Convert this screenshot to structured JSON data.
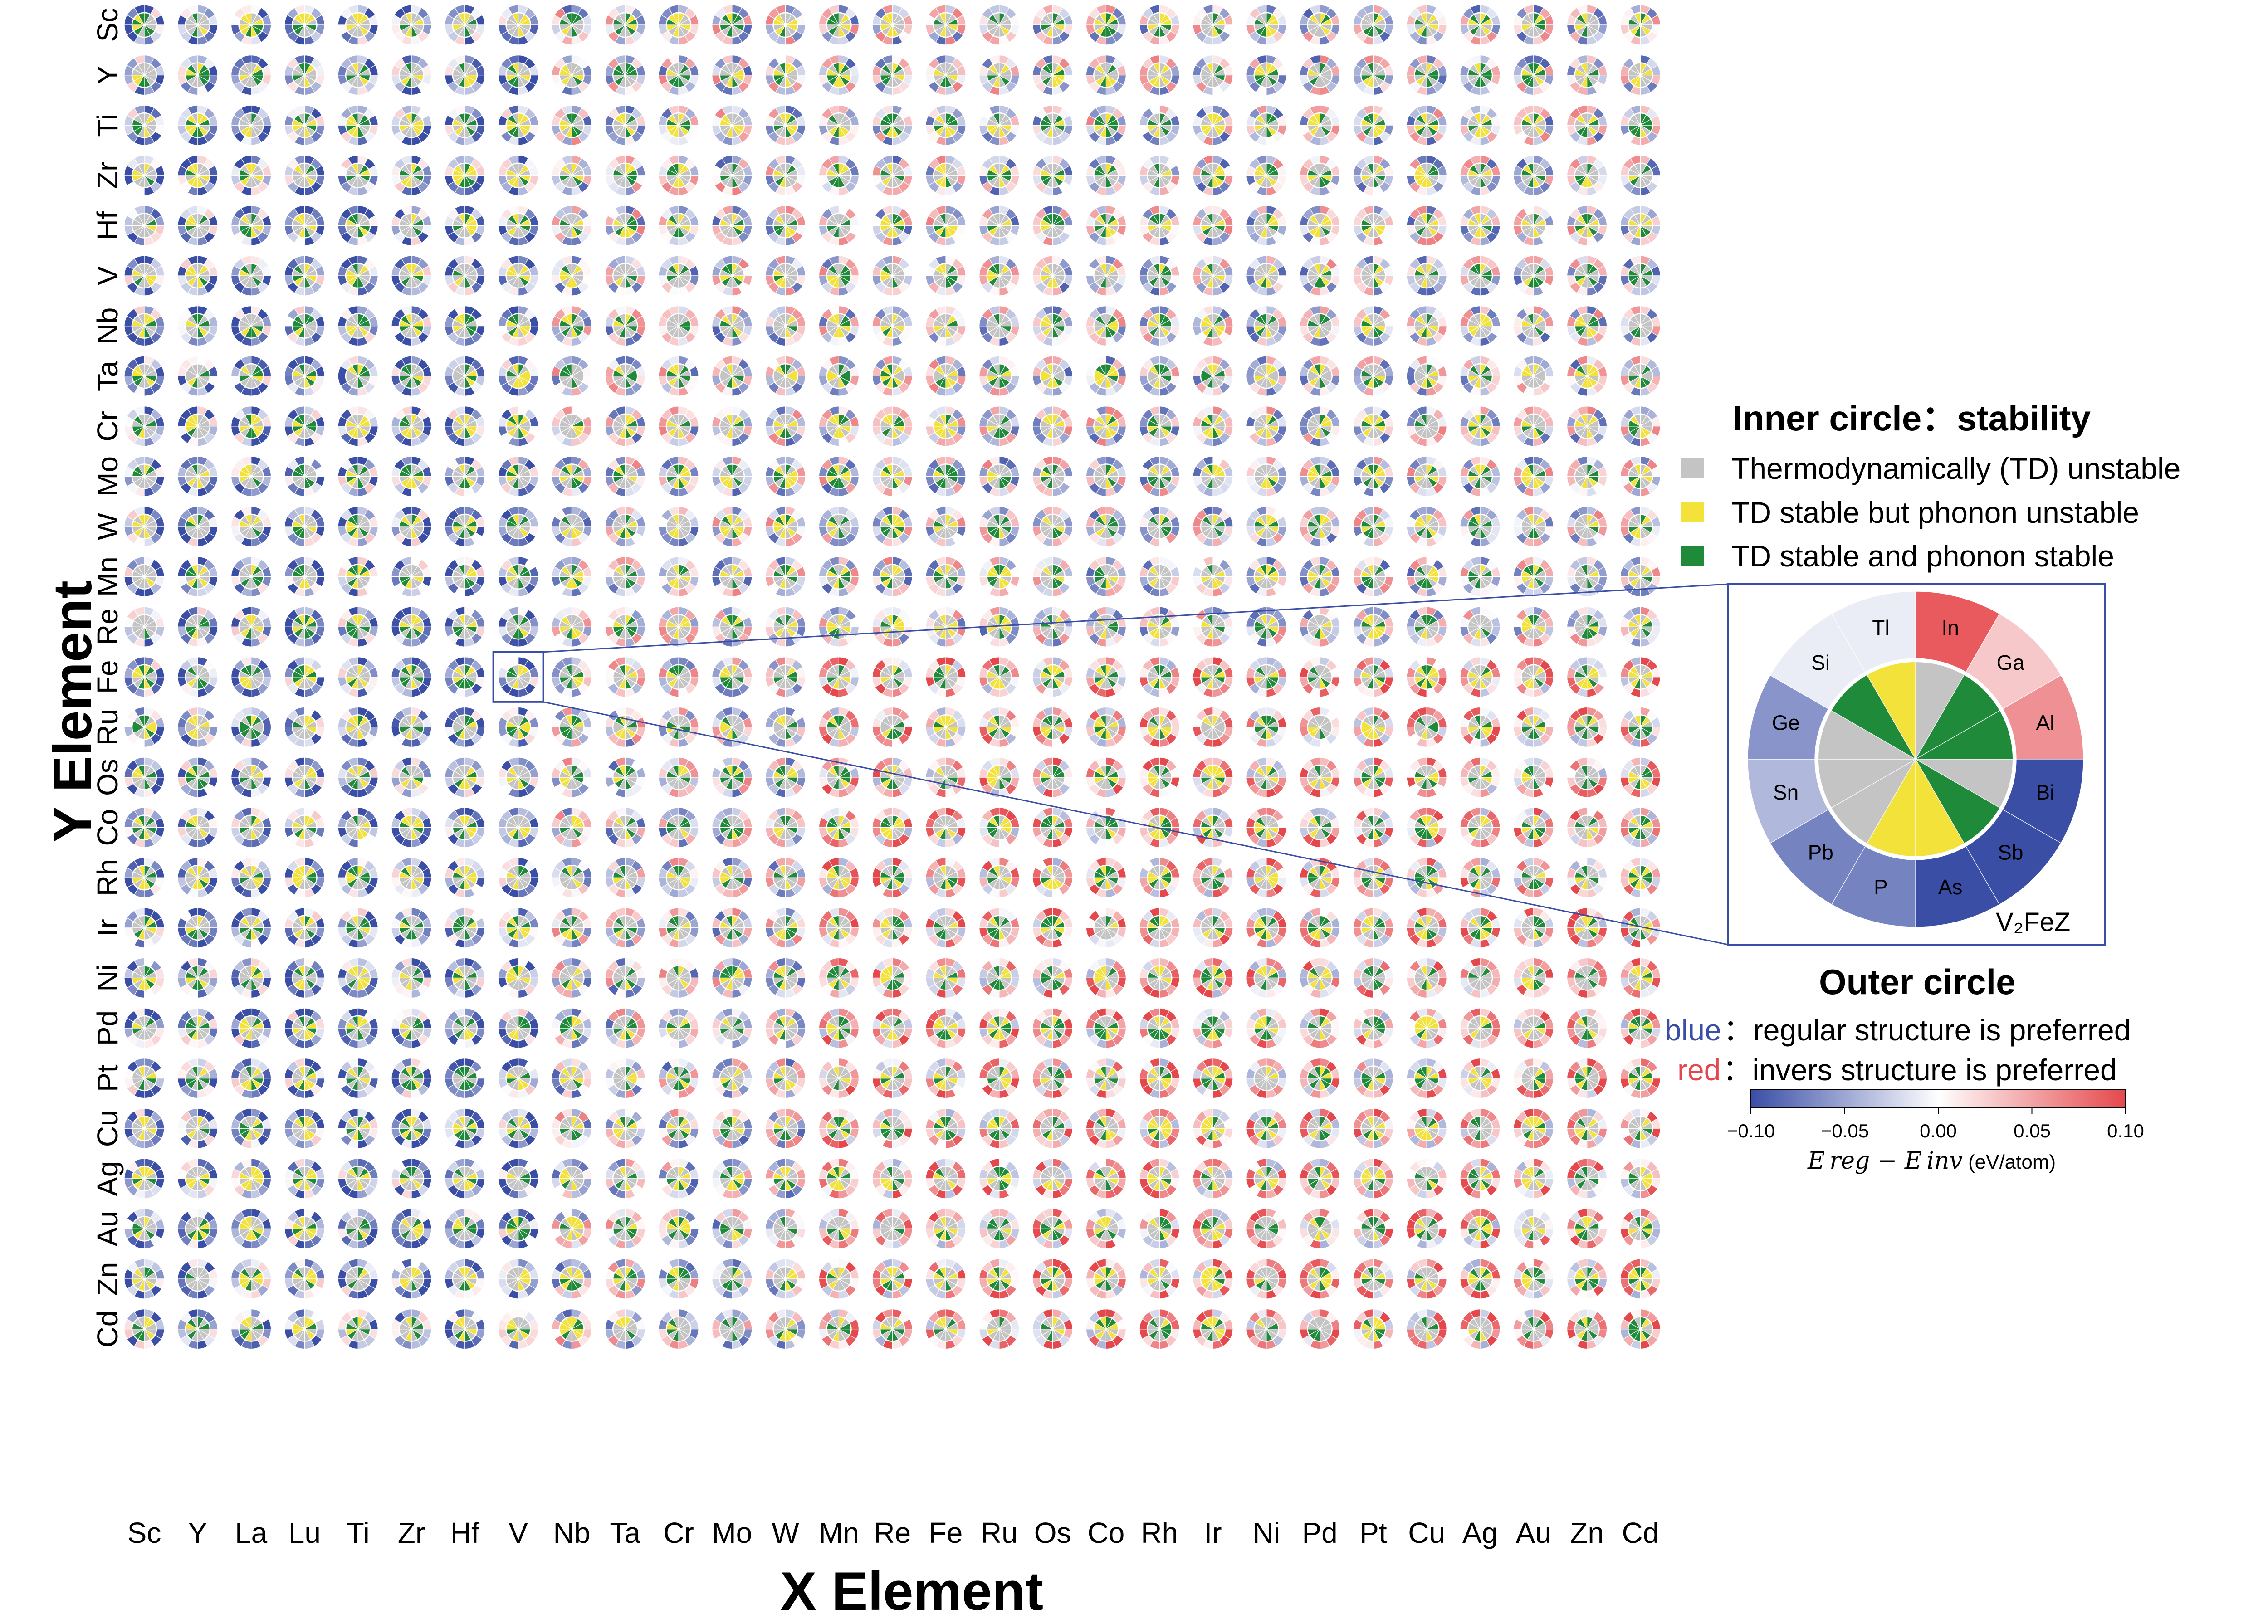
{
  "chart_data": {
    "type": "heatmap",
    "xlabel": "X Element",
    "ylabel": "Y Element",
    "x_categories": [
      "Sc",
      "Y",
      "La",
      "Lu",
      "Ti",
      "Zr",
      "Hf",
      "V",
      "Nb",
      "Ta",
      "Cr",
      "Mo",
      "W",
      "Mn",
      "Re",
      "Fe",
      "Ru",
      "Os",
      "Co",
      "Rh",
      "Ir",
      "Ni",
      "Pd",
      "Pt",
      "Cu",
      "Ag",
      "Au",
      "Zn",
      "Cd"
    ],
    "y_categories": [
      "Sc",
      "Y",
      "Ti",
      "Zr",
      "Hf",
      "V",
      "Nb",
      "Ta",
      "Cr",
      "Mo",
      "W",
      "Mn",
      "Re",
      "Fe",
      "Ru",
      "Os",
      "Co",
      "Rh",
      "Ir",
      "Ni",
      "Pd",
      "Pt",
      "Cu",
      "Ag",
      "Au",
      "Zn",
      "Cd"
    ],
    "z_elements": [
      "In",
      "Ga",
      "Al",
      "Bi",
      "Sb",
      "As",
      "P",
      "Pb",
      "Sn",
      "Ge",
      "Si",
      "Tl"
    ],
    "inner_legend": {
      "title": "Inner circle：stability",
      "entries": [
        {
          "label": "Thermodynamically (TD) unstable",
          "color": "#c4c4c4"
        },
        {
          "label": "TD stable but phonon unstable",
          "color": "#f2e23a"
        },
        {
          "label": "TD stable and phonon stable",
          "color": "#1f8a3a"
        }
      ]
    },
    "outer_legend": {
      "title": "Outer circle",
      "blue_key": "blue",
      "blue_text": "：regular structure is preferred",
      "red_key": "red",
      "red_text": "：invers structure is preferred",
      "blue_color": "#3a4ea6",
      "red_color": "#e5484c"
    },
    "colorbar": {
      "range": [
        -0.1,
        0.1
      ],
      "ticks": [
        "−0.10",
        "−0.05",
        "0.00",
        "0.05",
        "0.10"
      ],
      "label_math": "E reg − E inv",
      "label_unit": "(eV/atom)",
      "colors": [
        "#3a4ea6",
        "#ffffff",
        "#e5484c"
      ]
    },
    "inset": {
      "x_element": "V",
      "y_element": "Fe",
      "caption": "V₂FeZ",
      "inner": [
        "gray",
        "green",
        "green",
        "gray",
        "green",
        "yellow",
        "yellow",
        "gray",
        "gray",
        "gray",
        "green",
        "yellow"
      ],
      "outer": [
        0.09,
        0.03,
        0.06,
        -0.1,
        -0.1,
        -0.1,
        -0.07,
        -0.07,
        -0.04,
        -0.06,
        -0.01,
        -0.01
      ]
    }
  }
}
